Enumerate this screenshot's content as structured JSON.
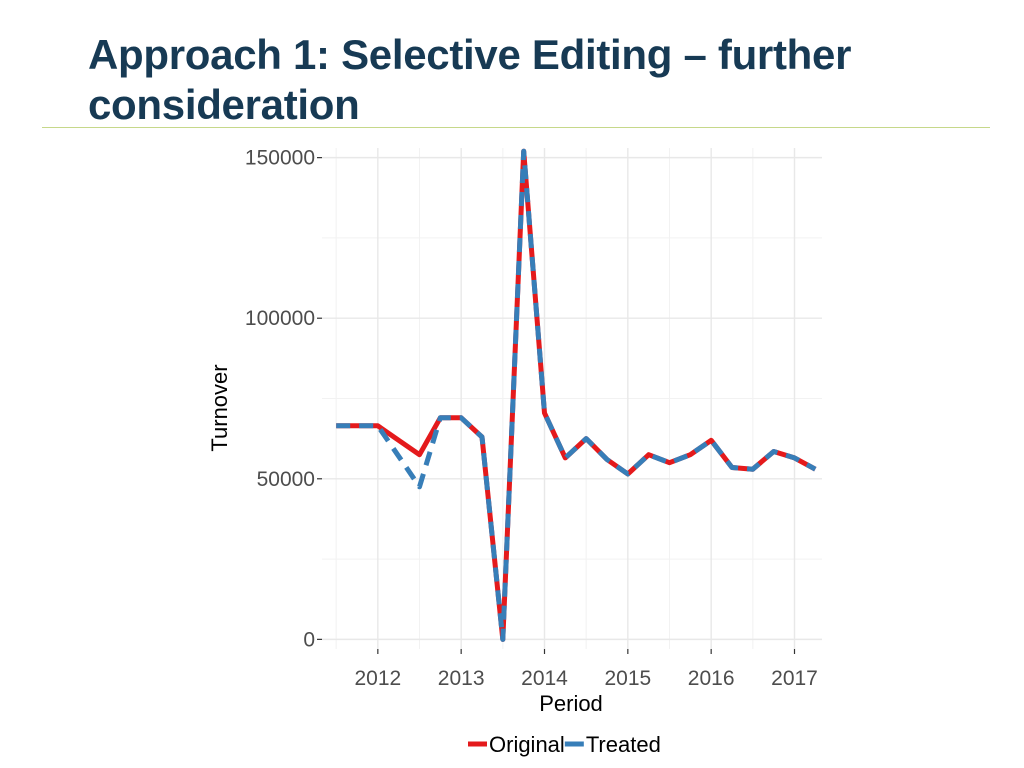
{
  "slide": {
    "title": "Approach 1: Selective Editing – further consideration"
  },
  "chart_data": {
    "type": "line",
    "xlabel": "Period",
    "ylabel": "Turnover",
    "xlim": [
      2011.33,
      2017.33
    ],
    "ylim": [
      -3000,
      153000
    ],
    "x_ticks": [
      2012,
      2013,
      2014,
      2015,
      2016,
      2017
    ],
    "x_tick_labels": [
      "2012",
      "2013",
      "2014",
      "2015",
      "2016",
      "2017"
    ],
    "y_ticks": [
      0,
      50000,
      100000,
      150000
    ],
    "y_tick_labels": [
      "0",
      "50000",
      "100000",
      "150000"
    ],
    "grid": true,
    "legend_position": "bottom",
    "series": [
      {
        "name": "Original",
        "color": "#e41a1c",
        "line_style": "solid",
        "x": [
          2011.5,
          2011.75,
          2012.0,
          2012.25,
          2012.5,
          2012.75,
          2013.0,
          2013.25,
          2013.5,
          2013.75,
          2014.0,
          2014.25,
          2014.5,
          2014.75,
          2015.0,
          2015.25,
          2015.5,
          2015.75,
          2016.0,
          2016.25,
          2016.5,
          2016.75,
          2017.0,
          2017.25
        ],
        "values": [
          66500,
          66500,
          66500,
          62000,
          57500,
          69000,
          69000,
          63000,
          0,
          152000,
          70500,
          56500,
          62500,
          56000,
          51500,
          57500,
          55000,
          57500,
          62000,
          53500,
          53000,
          58500,
          56500,
          53000
        ]
      },
      {
        "name": "Treated",
        "color": "#377eb8",
        "line_style": "dashed",
        "x": [
          2011.5,
          2011.75,
          2012.0,
          2012.25,
          2012.5,
          2012.75,
          2013.0,
          2013.25,
          2013.5,
          2013.75,
          2014.0,
          2014.25,
          2014.5,
          2014.75,
          2015.0,
          2015.25,
          2015.5,
          2015.75,
          2016.0,
          2016.25,
          2016.5,
          2016.75,
          2017.0,
          2017.25
        ],
        "values": [
          66500,
          66500,
          66500,
          57000,
          47500,
          69000,
          69000,
          63000,
          0,
          152000,
          70500,
          56500,
          62500,
          56000,
          51500,
          57500,
          55000,
          57500,
          62000,
          53500,
          53000,
          58500,
          56500,
          53000
        ]
      }
    ]
  }
}
